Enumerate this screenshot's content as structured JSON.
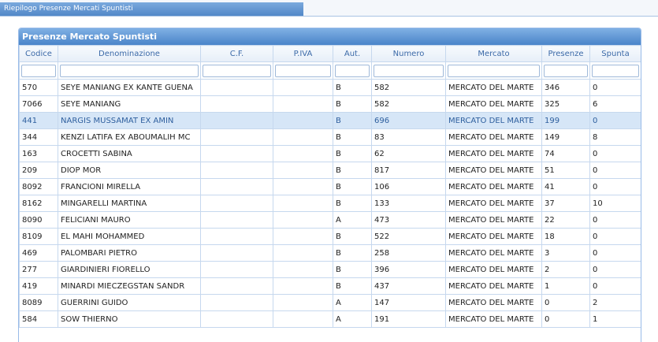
{
  "header": {
    "tab": "Riepilogo Presenze Mercati Spuntisti"
  },
  "panel": {
    "title": "Presenze Mercato Spuntisti"
  },
  "table": {
    "columns": [
      "Codice",
      "Denominazione",
      "C.F.",
      "P.IVA",
      "Aut.",
      "Numero",
      "Mercato",
      "Presenze",
      "Spunta"
    ],
    "rows": [
      {
        "codice": 570,
        "denominazione": "SEYE MANIANG EX KANTE GUENA",
        "aut": "B",
        "numero": 582,
        "mercato": "MERCATO DEL MARTE",
        "presenze": 346,
        "spunta": 0
      },
      {
        "codice": 7066,
        "denominazione": "SEYE MANIANG",
        "aut": "B",
        "numero": 582,
        "mercato": "MERCATO DEL MARTE",
        "presenze": 325,
        "spunta": 6
      },
      {
        "codice": 441,
        "denominazione": "NARGIS MUSSAMAT EX AMIN",
        "aut": "B",
        "numero": 696,
        "mercato": "MERCATO DEL MARTE",
        "presenze": 199,
        "spunta": 0
      },
      {
        "codice": 344,
        "denominazione": "KENZI LATIFA EX ABOUMALIH MC",
        "aut": "B",
        "numero": 83,
        "mercato": "MERCATO DEL MARTE",
        "presenze": 149,
        "spunta": 8
      },
      {
        "codice": 163,
        "denominazione": "CROCETTI SABINA",
        "aut": "B",
        "numero": 62,
        "mercato": "MERCATO DEL MARTE",
        "presenze": 74,
        "spunta": 0
      },
      {
        "codice": 209,
        "denominazione": "DIOP MOR",
        "aut": "B",
        "numero": 817,
        "mercato": "MERCATO DEL MARTE",
        "presenze": 51,
        "spunta": 0
      },
      {
        "codice": 8092,
        "denominazione": "FRANCIONI MIRELLA",
        "aut": "B",
        "numero": 106,
        "mercato": "MERCATO DEL MARTE",
        "presenze": 41,
        "spunta": 0
      },
      {
        "codice": 8162,
        "denominazione": "MINGARELLI MARTINA",
        "aut": "B",
        "numero": 133,
        "mercato": "MERCATO DEL MARTE",
        "presenze": 37,
        "spunta": 10
      },
      {
        "codice": 8090,
        "denominazione": "FELICIANI MAURO",
        "aut": "A",
        "numero": 473,
        "mercato": "MERCATO DEL MARTE",
        "presenze": 22,
        "spunta": 0
      },
      {
        "codice": 8109,
        "denominazione": "EL MAHI MOHAMMED",
        "aut": "B",
        "numero": 522,
        "mercato": "MERCATO DEL MARTE",
        "presenze": 18,
        "spunta": 0
      },
      {
        "codice": 469,
        "denominazione": "PALOMBARI PIETRO",
        "aut": "B",
        "numero": 258,
        "mercato": "MERCATO DEL MARTE",
        "presenze": 3,
        "spunta": 0
      },
      {
        "codice": 277,
        "denominazione": "GIARDINIERI FIORELLO",
        "aut": "B",
        "numero": 396,
        "mercato": "MERCATO DEL MARTE",
        "presenze": 2,
        "spunta": 0
      },
      {
        "codice": 419,
        "denominazione": "MINARDI MIECZEGSTAN SANDR",
        "aut": "B",
        "numero": 437,
        "mercato": "MERCATO DEL MARTE",
        "presenze": 1,
        "spunta": 0
      },
      {
        "codice": 8089,
        "denominazione": "GUERRINI GUIDO",
        "aut": "A",
        "numero": 147,
        "mercato": "MERCATO DEL MARTE",
        "presenze": 0,
        "spunta": 2
      },
      {
        "codice": 584,
        "denominazione": "SOW THIERNO",
        "aut": "A",
        "numero": 191,
        "mercato": "MERCATO DEL MARTE",
        "presenze": 0,
        "spunta": 1
      }
    ]
  }
}
